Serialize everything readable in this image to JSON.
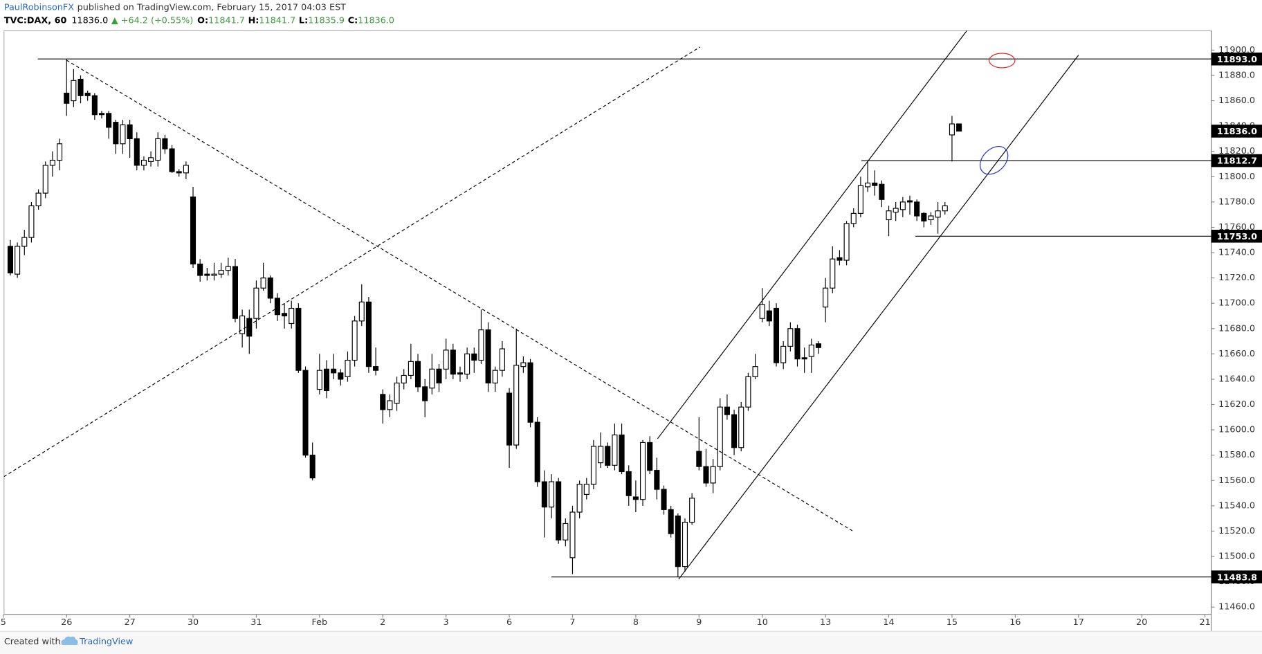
{
  "chart_data": {
    "type": "candlestick",
    "header": {
      "author": "PaulRobinsonFX",
      "published": "published on TradingView.com, February 15, 2017 04:03 EST",
      "symbol": "TVC:DAX, 60",
      "last": "11836.0",
      "change": "▲ +64.2 (+0.55%)",
      "ohlc_text": [
        {
          "key": "O:",
          "value": "11841.7"
        },
        {
          "key": "H:",
          "value": "11841.7"
        },
        {
          "key": "L:",
          "value": "11835.9"
        },
        {
          "key": "C:",
          "value": "11836.0"
        }
      ]
    },
    "footer": {
      "created": "Created with",
      "brand": "TradingView"
    },
    "up_color": "#ffffff",
    "down_color": "#000000",
    "xlim": [
      -8.9,
      162.9
    ],
    "ylim": [
      11454.2,
      11915.3
    ],
    "xticks": [
      {
        "value": -9,
        "label": "5"
      },
      {
        "value": 0,
        "label": "26"
      },
      {
        "value": 9,
        "label": "27"
      },
      {
        "value": 18,
        "label": "30"
      },
      {
        "value": 27,
        "label": "31"
      },
      {
        "value": 36,
        "label": "Feb"
      },
      {
        "value": 45,
        "label": "2"
      },
      {
        "value": 54,
        "label": "3"
      },
      {
        "value": 63,
        "label": "6"
      },
      {
        "value": 72,
        "label": "7"
      },
      {
        "value": 81,
        "label": "8"
      },
      {
        "value": 90,
        "label": "9"
      },
      {
        "value": 99,
        "label": "10"
      },
      {
        "value": 108,
        "label": "13"
      },
      {
        "value": 117,
        "label": "14"
      },
      {
        "value": 126,
        "label": "15"
      },
      {
        "value": 135,
        "label": "16"
      },
      {
        "value": 144,
        "label": "17"
      },
      {
        "value": 153,
        "label": "20"
      },
      {
        "value": 162,
        "label": "21"
      }
    ],
    "yticks": [
      {
        "value": 11460,
        "label": "11460.0"
      },
      {
        "value": 11480,
        "label": "11480.0"
      },
      {
        "value": 11500,
        "label": "11500.0"
      },
      {
        "value": 11520,
        "label": "11520.0"
      },
      {
        "value": 11540,
        "label": "11540.0"
      },
      {
        "value": 11560,
        "label": "11560.0"
      },
      {
        "value": 11580,
        "label": "11580.0"
      },
      {
        "value": 11600,
        "label": "11600.0"
      },
      {
        "value": 11620,
        "label": "11620.0"
      },
      {
        "value": 11640,
        "label": "11640.0"
      },
      {
        "value": 11660,
        "label": "11660.0"
      },
      {
        "value": 11680,
        "label": "11680.0"
      },
      {
        "value": 11700,
        "label": "11700.0"
      },
      {
        "value": 11720,
        "label": "11720.0"
      },
      {
        "value": 11740,
        "label": "11740.0"
      },
      {
        "value": 11760,
        "label": "11760.0"
      },
      {
        "value": 11780,
        "label": "11780.0"
      },
      {
        "value": 11800,
        "label": "11800.0"
      },
      {
        "value": 11820,
        "label": "11820.0"
      },
      {
        "value": 11840,
        "label": "11840.0"
      },
      {
        "value": 11860,
        "label": "11860.0"
      },
      {
        "value": 11880,
        "label": "11880.0"
      },
      {
        "value": 11900,
        "label": "11900.0"
      }
    ],
    "x": [
      -8,
      -7,
      -6,
      -5,
      -4,
      -3,
      -2,
      -1,
      0,
      1,
      2,
      3,
      4,
      5,
      6,
      7,
      8,
      9,
      10,
      11,
      12,
      13,
      14,
      15,
      16,
      17,
      18,
      19,
      20,
      21,
      22,
      23,
      24,
      25,
      26,
      27,
      28,
      29,
      30,
      31,
      32,
      33,
      34,
      35,
      36,
      37,
      38,
      39,
      40,
      41,
      42,
      43,
      44,
      45,
      46,
      47,
      48,
      49,
      50,
      51,
      52,
      53,
      54,
      55,
      56,
      57,
      58,
      59,
      60,
      61,
      62,
      63,
      64,
      65,
      66,
      67,
      68,
      69,
      70,
      71,
      72,
      73,
      74,
      75,
      76,
      77,
      78,
      79,
      80,
      81,
      82,
      83,
      84,
      85,
      86,
      87,
      88,
      89,
      90,
      91,
      92,
      93,
      94,
      95,
      96,
      97,
      98,
      99,
      100,
      101,
      102,
      103,
      104,
      105,
      106,
      107,
      108,
      109,
      110,
      111,
      112,
      113,
      114,
      115,
      116,
      117,
      118,
      119,
      120,
      121,
      122,
      123,
      124,
      125,
      126,
      127
    ],
    "ohlc": [
      [
        11745,
        11750,
        11722,
        11724
      ],
      [
        11723,
        11748,
        11720,
        11745
      ],
      [
        11745,
        11758,
        11738,
        11752
      ],
      [
        11752,
        11780,
        11748,
        11777
      ],
      [
        11777,
        11790,
        11774,
        11787
      ],
      [
        11787,
        11812,
        11783,
        11809
      ],
      [
        11809,
        11820,
        11800,
        11813
      ],
      [
        11813,
        11830,
        11805,
        11826
      ],
      [
        11866,
        11893,
        11848,
        11858
      ],
      [
        11860,
        11885,
        11855,
        11876
      ],
      [
        11877,
        11880,
        11858,
        11864
      ],
      [
        11866,
        11868,
        11860,
        11864
      ],
      [
        11864,
        11866,
        11845,
        11849
      ],
      [
        11850,
        11852,
        11846,
        11849
      ],
      [
        11850,
        11852,
        11830,
        11839
      ],
      [
        11843,
        11845,
        11818,
        11826
      ],
      [
        11826,
        11845,
        11818,
        11841
      ],
      [
        11841,
        11845,
        11815,
        11830
      ],
      [
        11830,
        11835,
        11805,
        11809
      ],
      [
        11809,
        11816,
        11805,
        11813
      ],
      [
        11812,
        11820,
        11808,
        11815
      ],
      [
        11813,
        11835,
        11808,
        11830
      ],
      [
        11830,
        11833,
        11818,
        11822
      ],
      [
        11822,
        11825,
        11803,
        11804
      ],
      [
        11804,
        11806,
        11800,
        11803
      ],
      [
        11803,
        11812,
        11798,
        11809
      ],
      [
        11784,
        11792,
        11728,
        11731
      ],
      [
        11731,
        11735,
        11717,
        11722
      ],
      [
        11723,
        11728,
        11718,
        11722
      ],
      [
        11722,
        11732,
        11718,
        11723
      ],
      [
        11723,
        11732,
        11720,
        11726
      ],
      [
        11726,
        11736,
        11722,
        11729
      ],
      [
        11729,
        11735,
        11685,
        11688
      ],
      [
        11676,
        11695,
        11665,
        11690
      ],
      [
        11688,
        11695,
        11660,
        11674
      ],
      [
        11688,
        11718,
        11680,
        11712
      ],
      [
        11712,
        11732,
        11710,
        11720
      ],
      [
        11720,
        11722,
        11700,
        11704
      ],
      [
        11704,
        11708,
        11686,
        11691
      ],
      [
        11692,
        11700,
        11680,
        11690
      ],
      [
        11684,
        11702,
        11680,
        11696
      ],
      [
        11696,
        11700,
        11645,
        11647
      ],
      [
        11647,
        11650,
        11578,
        11580
      ],
      [
        11580,
        11590,
        11560,
        11562
      ],
      [
        11632,
        11660,
        11628,
        11647
      ],
      [
        11648,
        11655,
        11625,
        11631
      ],
      [
        11648,
        11660,
        11640,
        11645
      ],
      [
        11645,
        11648,
        11635,
        11640
      ],
      [
        11642,
        11662,
        11638,
        11655
      ],
      [
        11655,
        11690,
        11650,
        11686
      ],
      [
        11686,
        11715,
        11682,
        11701
      ],
      [
        11701,
        11705,
        11645,
        11650
      ],
      [
        11650,
        11665,
        11643,
        11647
      ],
      [
        11628,
        11632,
        11605,
        11616
      ],
      [
        11616,
        11628,
        11610,
        11623
      ],
      [
        11621,
        11642,
        11615,
        11637
      ],
      [
        11637,
        11648,
        11632,
        11643
      ],
      [
        11643,
        11668,
        11640,
        11654
      ],
      [
        11654,
        11660,
        11630,
        11634
      ],
      [
        11634,
        11640,
        11610,
        11623
      ],
      [
        11633,
        11660,
        11628,
        11648
      ],
      [
        11648,
        11652,
        11630,
        11637
      ],
      [
        11648,
        11672,
        11640,
        11663
      ],
      [
        11663,
        11668,
        11640,
        11644
      ],
      [
        11645,
        11650,
        11638,
        11644
      ],
      [
        11644,
        11665,
        11640,
        11660
      ],
      [
        11660,
        11665,
        11645,
        11655
      ],
      [
        11655,
        11695,
        11652,
        11679
      ],
      [
        11679,
        11685,
        11630,
        11637
      ],
      [
        11637,
        11650,
        11630,
        11647
      ],
      [
        11647,
        11670,
        11642,
        11664
      ],
      [
        11629,
        11633,
        11570,
        11588
      ],
      [
        11588,
        11680,
        11585,
        11651
      ],
      [
        11650,
        11658,
        11645,
        11653
      ],
      [
        11653,
        11656,
        11602,
        11606
      ],
      [
        11606,
        11610,
        11555,
        11559
      ],
      [
        11559,
        11568,
        11515,
        11539
      ],
      [
        11539,
        11565,
        11530,
        11559
      ],
      [
        11559,
        11562,
        11510,
        11513
      ],
      [
        11513,
        11530,
        11508,
        11526
      ],
      [
        11499,
        11540,
        11486,
        11535
      ],
      [
        11535,
        11560,
        11530,
        11557
      ],
      [
        11549,
        11562,
        11545,
        11557
      ],
      [
        11557,
        11592,
        11553,
        11587
      ],
      [
        11574,
        11598,
        11570,
        11587
      ],
      [
        11587,
        11590,
        11570,
        11572
      ],
      [
        11572,
        11605,
        11568,
        11596
      ],
      [
        11596,
        11605,
        11565,
        11567
      ],
      [
        11567,
        11572,
        11540,
        11548
      ],
      [
        11547,
        11560,
        11535,
        11545
      ],
      [
        11545,
        11592,
        11540,
        11590
      ],
      [
        11590,
        11595,
        11565,
        11568
      ],
      [
        11568,
        11578,
        11545,
        11553
      ],
      [
        11553,
        11556,
        11533,
        11537
      ],
      [
        11537,
        11540,
        11515,
        11518
      ],
      [
        11532,
        11534,
        11483.8,
        11492
      ],
      [
        11492,
        11530,
        11488,
        11527
      ],
      [
        11527,
        11550,
        11525,
        11546
      ],
      [
        11583,
        11610,
        11568,
        11571
      ],
      [
        11571,
        11585,
        11555,
        11558
      ],
      [
        11558,
        11577,
        11550,
        11571
      ],
      [
        11571,
        11625,
        11568,
        11618
      ],
      [
        11618,
        11628,
        11608,
        11612
      ],
      [
        11612,
        11616,
        11580,
        11586
      ],
      [
        11586,
        11622,
        11583,
        11618
      ],
      [
        11618,
        11645,
        11615,
        11642
      ],
      [
        11642,
        11660,
        11640,
        11650
      ],
      [
        11688,
        11712,
        11685,
        11699
      ],
      [
        11694,
        11702,
        11682,
        11686
      ],
      [
        11696,
        11700,
        11650,
        11653
      ],
      [
        11653,
        11670,
        11648,
        11666
      ],
      [
        11666,
        11685,
        11662,
        11680
      ],
      [
        11680,
        11683,
        11650,
        11656
      ],
      [
        11657,
        11665,
        11645,
        11656
      ],
      [
        11658,
        11672,
        11645,
        11667
      ],
      [
        11668,
        11670,
        11660,
        11665
      ],
      [
        11697,
        11720,
        11685,
        11712
      ],
      [
        11712,
        11745,
        11708,
        11735
      ],
      [
        11736,
        11742,
        11730,
        11734
      ],
      [
        11734,
        11765,
        11730,
        11763
      ],
      [
        11763,
        11775,
        11760,
        11771
      ],
      [
        11771,
        11800,
        11768,
        11793
      ],
      [
        11792,
        11812.7,
        11788,
        11795
      ],
      [
        11795,
        11805,
        11785,
        11793
      ],
      [
        11794,
        11797,
        11776,
        11782
      ],
      [
        11766,
        11777,
        11753,
        11773
      ],
      [
        11772,
        11780,
        11765,
        11775
      ],
      [
        11774,
        11784,
        11768,
        11780
      ],
      [
        11781,
        11785,
        11770,
        11780
      ],
      [
        11780,
        11782,
        11765,
        11769
      ],
      [
        11771,
        11772,
        11760,
        11765
      ],
      [
        11766,
        11772,
        11762,
        11769
      ],
      [
        11768,
        11780,
        11755,
        11773
      ],
      [
        11773,
        11780,
        11770,
        11777
      ],
      [
        11833,
        11848,
        11812,
        11841.7
      ],
      [
        11841.7,
        11841.7,
        11835.9,
        11836.0
      ]
    ],
    "levels": [
      {
        "value": 11893.0,
        "label": "11893.0",
        "start": -4.1
      },
      {
        "value": 11812.7,
        "label": "11812.7",
        "start": 113.1
      },
      {
        "value": 11753.0,
        "label": "11753.0",
        "start": 120.8
      },
      {
        "value": 11483.8,
        "label": "11483.8",
        "start": 69
      }
    ],
    "last_price": {
      "value": 11836.0,
      "label": "11836.0"
    },
    "trendlines": [
      {
        "style": "dashed",
        "points": [
          [
            -8.93,
            11563
          ],
          [
            90.15,
            11902.5
          ]
        ]
      },
      {
        "style": "dashed",
        "points": [
          [
            0,
            11892
          ],
          [
            111.9,
            11520
          ]
        ]
      },
      {
        "style": "solid",
        "points": [
          [
            84.1,
            11593
          ],
          [
            128.2,
            11916
          ]
        ]
      },
      {
        "style": "solid",
        "points": [
          [
            87.1,
            11482
          ],
          [
            144,
            11896
          ]
        ]
      }
    ]
  }
}
